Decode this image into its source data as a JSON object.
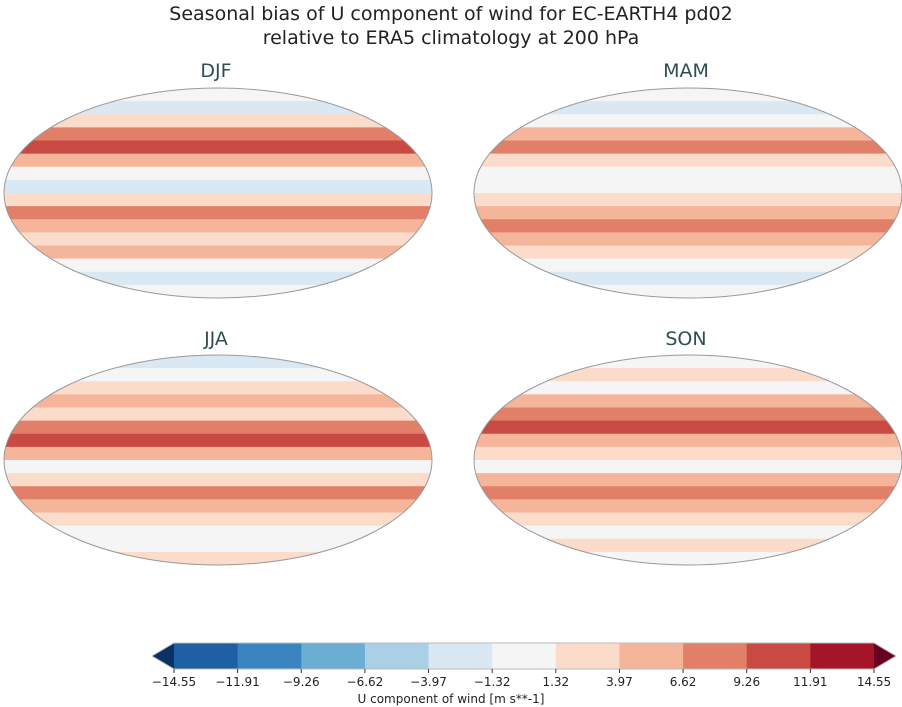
{
  "title_line1": "Seasonal bias of U component of wind for EC-EARTH4 pd02",
  "title_line2": "relative to ERA5 climatology at 200 hPa",
  "panels": [
    {
      "label": "DJF"
    },
    {
      "label": "MAM"
    },
    {
      "label": "JJA"
    },
    {
      "label": "SON"
    }
  ],
  "colorbar": {
    "label": "U component of wind [m s**-1]",
    "ticks": [
      "−14.55",
      "−11.91",
      "−9.26",
      "−6.62",
      "−3.97",
      "−1.32",
      "1.32",
      "3.97",
      "6.62",
      "9.26",
      "11.91",
      "14.55"
    ],
    "colors": [
      "#1f5fa3",
      "#3a85bf",
      "#6aaed4",
      "#a9d0e5",
      "#d9e8f2",
      "#f5f5f5",
      "#fbdccb",
      "#f5b59a",
      "#e27f68",
      "#c84a43",
      "#a51428"
    ],
    "extend_low": "#0a3066",
    "extend_high": "#67001f"
  }
}
